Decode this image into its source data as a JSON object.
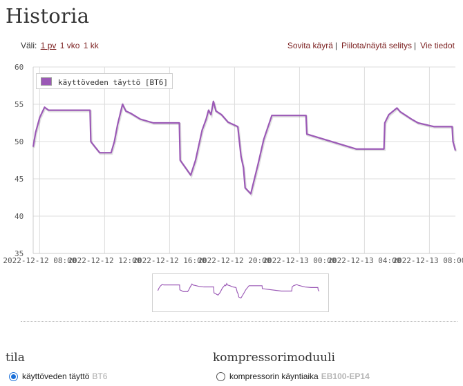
{
  "page": {
    "title": "Historia"
  },
  "range": {
    "label": "Väli:",
    "options": [
      "1 pv",
      "1 vko",
      "1 kk"
    ],
    "active": "1 pv"
  },
  "actions": {
    "fit": "Sovita käyrä",
    "toggle_legend": "Piilota/näytä selitys",
    "export": "Vie tiedot",
    "separator": "|"
  },
  "colors": {
    "series": "#9b59b6",
    "grid": "#dddddd",
    "axis_text": "#555555",
    "radio_accent": "#1a6fd8"
  },
  "chart_data": {
    "type": "line",
    "legend_position": "top-left",
    "grid": true,
    "ylim": [
      35,
      60
    ],
    "yticks": [
      35,
      40,
      45,
      50,
      55,
      60
    ],
    "x_range_hours": [
      7.6,
      33.6
    ],
    "xticks": [
      {
        "h": 8,
        "label": "2022-12-12 08:00"
      },
      {
        "h": 12,
        "label": "2022-12-12 12:00"
      },
      {
        "h": 16,
        "label": "2022-12-12 16:00"
      },
      {
        "h": 20,
        "label": "2022-12-12 20:00"
      },
      {
        "h": 24,
        "label": "2022-12-13 00:00"
      },
      {
        "h": 28,
        "label": "2022-12-13 04:00"
      },
      {
        "h": 32,
        "label": "2022-12-13 08:00"
      }
    ],
    "series": [
      {
        "name": "käyttöveden täyttö [BT6]",
        "points": [
          [
            7.6,
            49.3
          ],
          [
            7.75,
            51.2
          ],
          [
            8.0,
            53.2
          ],
          [
            8.3,
            54.6
          ],
          [
            8.55,
            54.2
          ],
          [
            11.1,
            54.2
          ],
          [
            11.15,
            50.0
          ],
          [
            11.4,
            49.3
          ],
          [
            11.7,
            48.5
          ],
          [
            12.4,
            48.5
          ],
          [
            12.6,
            50.0
          ],
          [
            12.8,
            52.3
          ],
          [
            13.1,
            55.0
          ],
          [
            13.3,
            54.1
          ],
          [
            13.6,
            53.8
          ],
          [
            14.2,
            53.0
          ],
          [
            15.0,
            52.5
          ],
          [
            16.6,
            52.5
          ],
          [
            16.65,
            47.5
          ],
          [
            17.3,
            45.5
          ],
          [
            17.6,
            47.5
          ],
          [
            18.0,
            51.5
          ],
          [
            18.25,
            53.0
          ],
          [
            18.4,
            54.2
          ],
          [
            18.55,
            53.6
          ],
          [
            18.7,
            55.4
          ],
          [
            18.85,
            54.1
          ],
          [
            19.2,
            53.6
          ],
          [
            19.6,
            52.6
          ],
          [
            20.2,
            52.0
          ],
          [
            20.4,
            48.0
          ],
          [
            20.55,
            46.5
          ],
          [
            20.65,
            43.8
          ],
          [
            21.0,
            43.0
          ],
          [
            21.45,
            47.0
          ],
          [
            21.8,
            50.3
          ],
          [
            22.3,
            53.5
          ],
          [
            24.4,
            53.5
          ],
          [
            24.45,
            51.0
          ],
          [
            27.5,
            49.0
          ],
          [
            29.2,
            49.0
          ],
          [
            29.25,
            52.5
          ],
          [
            29.5,
            53.6
          ],
          [
            30.0,
            54.5
          ],
          [
            30.2,
            54.0
          ],
          [
            30.9,
            53.0
          ],
          [
            31.3,
            52.5
          ],
          [
            32.3,
            52.0
          ],
          [
            33.4,
            52.0
          ],
          [
            33.45,
            50.0
          ],
          [
            33.6,
            48.8
          ]
        ]
      }
    ]
  },
  "sections": [
    {
      "title": "tila",
      "options": [
        {
          "label": "käyttöveden täyttö",
          "code": "BT6",
          "selected": true
        }
      ]
    },
    {
      "title": "kompressorimoduuli",
      "options": [
        {
          "label": "kompressorin käyntiaika",
          "code": "EB100-EP14",
          "selected": false
        }
      ]
    }
  ]
}
